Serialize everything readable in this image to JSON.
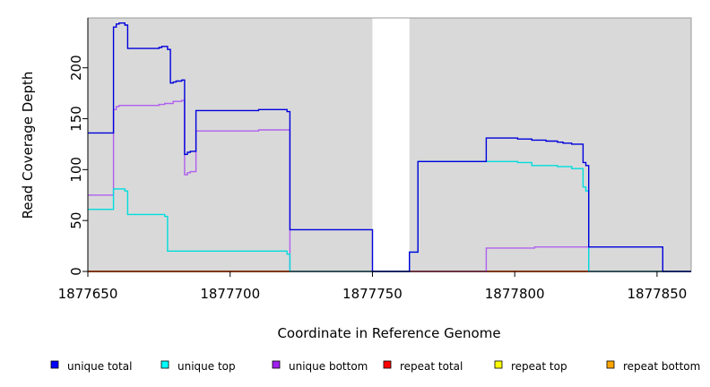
{
  "chart_data": {
    "type": "line",
    "title": "",
    "xlabel": "Coordinate in Reference Genome",
    "ylabel": "Read Coverage Depth",
    "xlim": [
      1877650,
      1877862
    ],
    "ylim": [
      0,
      250
    ],
    "x_ticks": [
      1877650,
      1877700,
      1877750,
      1877800,
      1877850
    ],
    "y_ticks": [
      0,
      50,
      100,
      150,
      200
    ],
    "background_color": "#d9d9d9",
    "gap_region": [
      1877750,
      1877763
    ],
    "legend_position": "bottom",
    "series": [
      {
        "name": "unique total",
        "color": "#0000dd",
        "legend_color": "#0000ff",
        "steps": [
          [
            1877650,
            136
          ],
          [
            1877659,
            240
          ],
          [
            1877660,
            243
          ],
          [
            1877661,
            244
          ],
          [
            1877663,
            242
          ],
          [
            1877664,
            219
          ],
          [
            1877675,
            220
          ],
          [
            1877676,
            221
          ],
          [
            1877678,
            218
          ],
          [
            1877679,
            185
          ],
          [
            1877680,
            186
          ],
          [
            1877681,
            187
          ],
          [
            1877683,
            188
          ],
          [
            1877684,
            115
          ],
          [
            1877685,
            117
          ],
          [
            1877686,
            118
          ],
          [
            1877688,
            158
          ],
          [
            1877710,
            159
          ],
          [
            1877720,
            157
          ],
          [
            1877721,
            41
          ],
          [
            1877750,
            0
          ],
          [
            1877763,
            19
          ],
          [
            1877766,
            108
          ],
          [
            1877790,
            131
          ],
          [
            1877801,
            130
          ],
          [
            1877806,
            129
          ],
          [
            1877811,
            128
          ],
          [
            1877815,
            127
          ],
          [
            1877817,
            126
          ],
          [
            1877820,
            125
          ],
          [
            1877824,
            107
          ],
          [
            1877825,
            104
          ],
          [
            1877826,
            24
          ],
          [
            1877852,
            0
          ],
          [
            1877862,
            0
          ]
        ]
      },
      {
        "name": "unique top",
        "color": "#00dddd",
        "legend_color": "#00ffff",
        "steps": [
          [
            1877650,
            61
          ],
          [
            1877659,
            81
          ],
          [
            1877663,
            79
          ],
          [
            1877664,
            56
          ],
          [
            1877677,
            54
          ],
          [
            1877678,
            20
          ],
          [
            1877720,
            17
          ],
          [
            1877721,
            0
          ],
          [
            1877750,
            0
          ],
          [
            1877763,
            19
          ],
          [
            1877766,
            108
          ],
          [
            1877790,
            108
          ],
          [
            1877801,
            107
          ],
          [
            1877806,
            104
          ],
          [
            1877815,
            103
          ],
          [
            1877820,
            101
          ],
          [
            1877824,
            83
          ],
          [
            1877825,
            79
          ],
          [
            1877826,
            0
          ],
          [
            1877862,
            0
          ]
        ]
      },
      {
        "name": "unique bottom",
        "color": "#b060ee",
        "legend_color": "#a020f0",
        "steps": [
          [
            1877650,
            75
          ],
          [
            1877659,
            159
          ],
          [
            1877660,
            162
          ],
          [
            1877661,
            163
          ],
          [
            1877675,
            164
          ],
          [
            1877677,
            165
          ],
          [
            1877680,
            167
          ],
          [
            1877683,
            168
          ],
          [
            1877684,
            95
          ],
          [
            1877685,
            97
          ],
          [
            1877686,
            98
          ],
          [
            1877688,
            138
          ],
          [
            1877710,
            139
          ],
          [
            1877721,
            0
          ],
          [
            1877790,
            23
          ],
          [
            1877807,
            24
          ],
          [
            1877826,
            0
          ],
          [
            1877862,
            0
          ]
        ]
      },
      {
        "name": "repeat total",
        "color": "#ff0000",
        "legend_color": "#ff0000",
        "steps": [
          [
            1877650,
            0
          ],
          [
            1877862,
            0
          ]
        ]
      },
      {
        "name": "repeat top",
        "color": "#ffff00",
        "legend_color": "#ffff00",
        "steps": [
          [
            1877650,
            0
          ],
          [
            1877862,
            0
          ]
        ]
      },
      {
        "name": "repeat bottom",
        "color": "#ff8c00",
        "legend_color": "#ffa500",
        "steps": [
          [
            1877650,
            0
          ],
          [
            1877862,
            0
          ]
        ]
      }
    ]
  }
}
